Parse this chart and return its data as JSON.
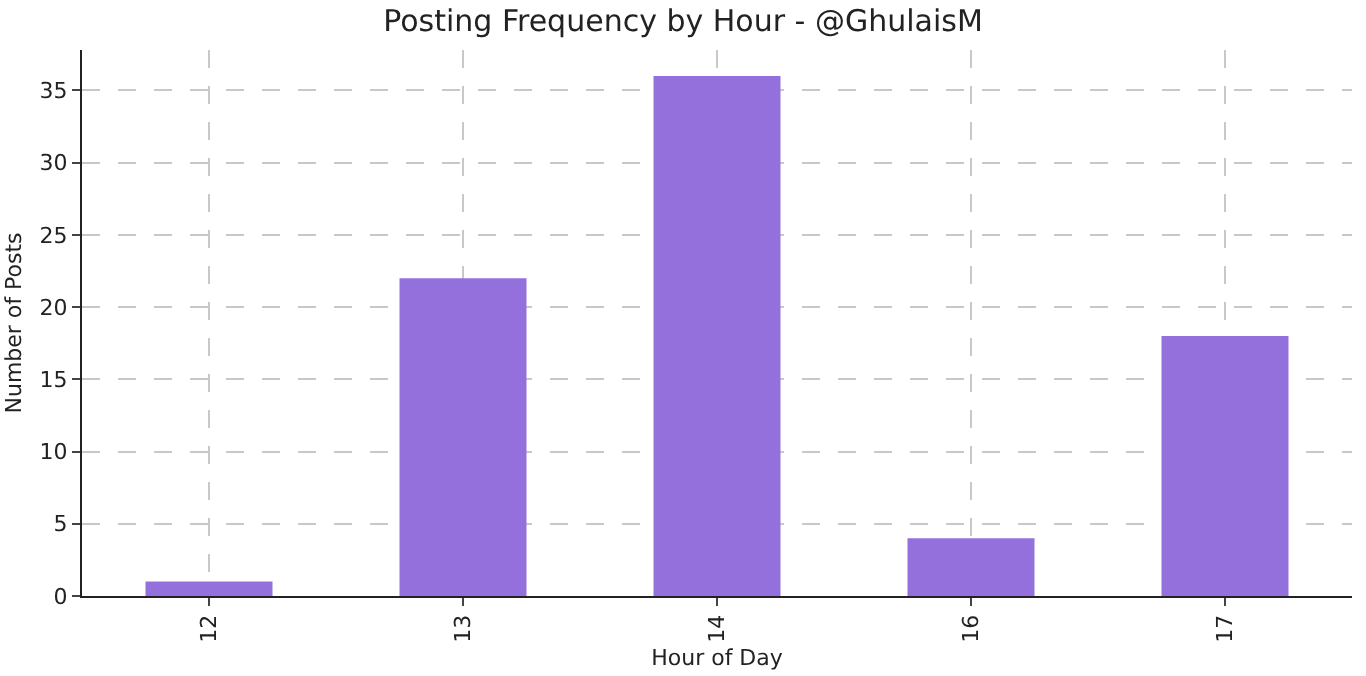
{
  "chart_data": {
    "type": "bar",
    "title": "Posting Frequency by Hour - @GhulaisM",
    "xlabel": "Hour of Day",
    "ylabel": "Number of Posts",
    "categories": [
      "12",
      "13",
      "14",
      "16",
      "17"
    ],
    "values": [
      1,
      22,
      36,
      4,
      18
    ],
    "color": "#9370db",
    "ylim": [
      0,
      37.8
    ],
    "yticks": [
      0,
      5,
      10,
      15,
      20,
      25,
      30,
      35
    ],
    "grid": true
  }
}
